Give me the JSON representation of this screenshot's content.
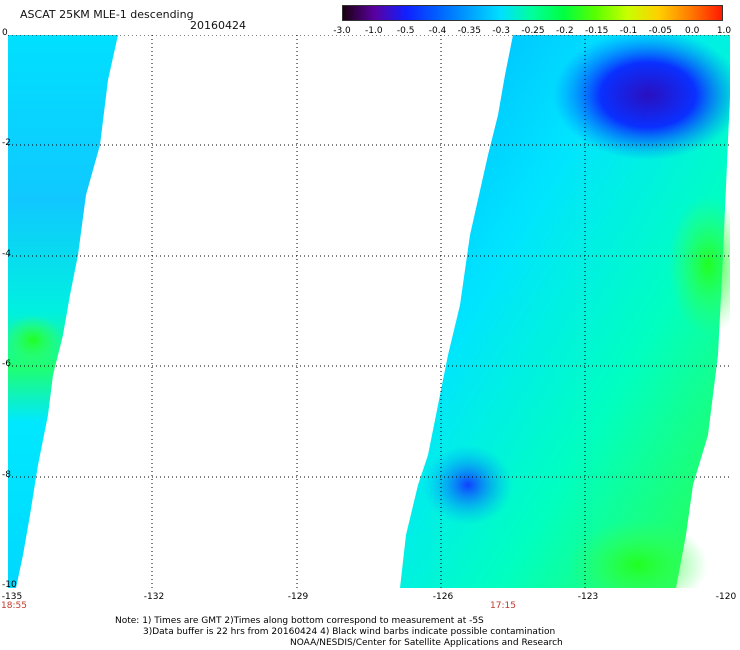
{
  "title": "ASCAT 25KM MLE-1 descending",
  "date": "20160424",
  "colorbar": {
    "labels": [
      "-3.0",
      "-1.0",
      "-0.5",
      "-0.4",
      "-0.35",
      "-0.3",
      "-0.25",
      "-0.2",
      "-0.15",
      "-0.1",
      "-0.05",
      "0.0",
      "1.0"
    ],
    "colors": [
      "#1a0010",
      "#5a00a0",
      "#1020ff",
      "#0060ff",
      "#00a0ff",
      "#00e0ff",
      "#00ff9a",
      "#00ff40",
      "#5aff00",
      "#c8ff00",
      "#ffd000",
      "#ff7a00",
      "#ff1a00"
    ]
  },
  "map": {
    "x_ticks": [
      "-135",
      "-132",
      "-129",
      "-126",
      "-123",
      "-120"
    ],
    "y_ticks": [
      "0",
      "-2",
      "-4",
      "-6",
      "-8",
      "-10"
    ],
    "times": [
      "18:55",
      "17:15"
    ],
    "grid": true
  },
  "notes": [
    "Note: 1) Times are GMT 2)Times along bottom correspond to measurement at -5S",
    "3)Data buffer is 22 hrs from 20160424 4) Black wind barbs indicate possible contamination",
    "NOAA/NESDIS/Center for Satellite Applications and Research"
  ]
}
